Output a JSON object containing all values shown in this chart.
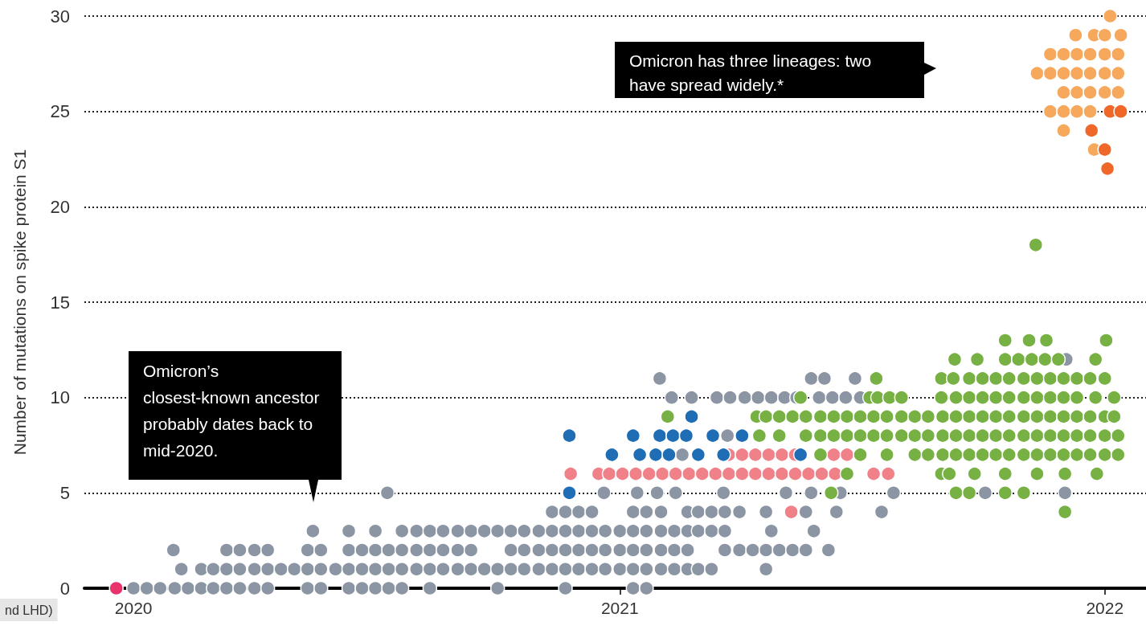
{
  "chart_data": {
    "type": "scatter",
    "ylabel": "Number of mutations on spike protein S1",
    "xlim": [
      "2019-11-25",
      "2022-02-01"
    ],
    "xticks": [
      {
        "value": "2020-01-01",
        "label": "2020"
      },
      {
        "value": "2021-01-01",
        "label": "2021"
      },
      {
        "value": "2022-01-01",
        "label": "2022"
      }
    ],
    "ylim": [
      0,
      30
    ],
    "yticks": [
      0,
      5,
      10,
      15,
      20,
      25,
      30
    ],
    "grid": "y",
    "marker": "circle",
    "annotations": [
      "Omicron has three lineages: two have spread widely.*",
      "Omicron’s closest-known ancestor probably dates back to mid-2020.",
      "nd LHD)"
    ],
    "series": [
      {
        "color": "#8c95a3",
        "x": [
          "2020-01-01",
          "2020-01-11",
          "2020-01-21",
          "2020-02-01",
          "2020-02-11",
          "2020-02-21",
          "2020-03-01",
          "2020-03-11",
          "2020-03-21",
          "2020-04-01",
          "2020-04-11",
          "2020-05-11",
          "2020-05-21",
          "2020-06-11",
          "2020-06-21",
          "2020-07-01",
          "2020-07-11",
          "2020-07-21",
          "2020-08-11",
          "2020-10-01",
          "2020-11-21",
          "2021-01-11",
          "2021-01-21",
          "2020-02-06",
          "2020-02-21",
          "2020-03-01",
          "2020-03-11",
          "2020-03-21",
          "2020-04-01",
          "2020-04-11",
          "2020-04-21",
          "2020-05-01",
          "2020-05-11",
          "2020-05-21",
          "2020-06-01",
          "2020-06-11",
          "2020-06-21",
          "2020-07-01",
          "2020-07-11",
          "2020-07-21",
          "2020-08-01",
          "2020-08-11",
          "2020-08-21",
          "2020-09-01",
          "2020-09-11",
          "2020-09-21",
          "2020-10-01",
          "2020-10-11",
          "2020-10-21",
          "2020-11-01",
          "2020-11-11",
          "2020-11-21",
          "2020-12-01",
          "2020-12-11",
          "2020-12-21",
          "2021-01-01",
          "2021-01-11",
          "2021-01-21",
          "2021-02-01",
          "2021-02-11",
          "2021-02-21",
          "2021-03-01",
          "2021-03-11",
          "2021-04-21",
          "2020-01-31",
          "2020-03-11",
          "2020-03-21",
          "2020-04-01",
          "2020-04-11",
          "2020-05-11",
          "2020-05-21",
          "2020-06-11",
          "2020-06-21",
          "2020-07-01",
          "2020-07-11",
          "2020-07-21",
          "2020-08-01",
          "2020-08-11",
          "2020-08-21",
          "2020-09-01",
          "2020-09-11",
          "2020-10-11",
          "2020-10-21",
          "2020-11-01",
          "2020-11-11",
          "2020-11-21",
          "2020-12-01",
          "2020-12-11",
          "2020-12-21",
          "2021-01-01",
          "2021-01-11",
          "2021-01-21",
          "2021-02-01",
          "2021-02-11",
          "2021-02-21",
          "2021-03-21",
          "2021-04-01",
          "2021-04-11",
          "2021-04-21",
          "2021-05-01",
          "2021-05-11",
          "2021-05-21",
          "2021-06-07",
          "2020-05-15",
          "2020-06-11",
          "2020-07-01",
          "2020-07-21",
          "2020-08-01",
          "2020-08-11",
          "2020-08-21",
          "2020-09-01",
          "2020-09-11",
          "2020-09-21",
          "2020-10-01",
          "2020-10-11",
          "2020-10-21",
          "2020-11-01",
          "2020-11-11",
          "2020-11-21",
          "2020-12-01",
          "2020-12-11",
          "2020-12-21",
          "2021-01-01",
          "2021-01-11",
          "2021-01-21",
          "2021-02-01",
          "2021-02-11",
          "2021-02-21",
          "2021-03-01",
          "2021-03-11",
          "2021-03-21",
          "2021-04-25",
          "2021-05-27",
          "2020-11-11",
          "2020-11-21",
          "2020-12-01",
          "2020-12-11",
          "2021-01-11",
          "2021-01-21",
          "2021-02-01",
          "2021-02-21",
          "2021-03-01",
          "2021-03-11",
          "2021-03-21",
          "2021-04-01",
          "2021-04-21",
          "2021-05-21",
          "2021-06-13",
          "2021-07-17",
          "2020-07-10",
          "2020-12-20",
          "2021-01-14",
          "2021-01-29",
          "2021-02-12",
          "2021-03-20",
          "2021-05-06",
          "2021-05-25",
          "2021-06-16",
          "2021-07-26",
          "2021-10-03",
          "2021-12-02",
          "2021-02-17",
          "2021-03-23",
          "2021-02-09",
          "2021-02-24",
          "2021-03-15",
          "2021-03-25",
          "2021-04-05",
          "2021-04-15",
          "2021-04-25",
          "2021-05-05",
          "2021-05-14",
          "2021-05-31",
          "2021-06-10",
          "2021-06-20",
          "2021-07-01",
          "2021-01-31",
          "2021-05-25",
          "2021-06-04",
          "2021-06-27",
          "2021-12-03"
        ],
        "values": [
          0,
          0,
          0,
          0,
          0,
          0,
          0,
          0,
          0,
          0,
          0,
          0,
          0,
          0,
          0,
          0,
          0,
          0,
          0,
          0,
          0,
          0,
          0,
          1,
          1,
          1,
          1,
          1,
          1,
          1,
          1,
          1,
          1,
          1,
          1,
          1,
          1,
          1,
          1,
          1,
          1,
          1,
          1,
          1,
          1,
          1,
          1,
          1,
          1,
          1,
          1,
          1,
          1,
          1,
          1,
          1,
          1,
          1,
          1,
          1,
          1,
          1,
          1,
          1,
          2,
          2,
          2,
          2,
          2,
          2,
          2,
          2,
          2,
          2,
          2,
          2,
          2,
          2,
          2,
          2,
          2,
          2,
          2,
          2,
          2,
          2,
          2,
          2,
          2,
          2,
          2,
          2,
          2,
          2,
          2,
          2,
          2,
          2,
          2,
          2,
          2,
          2,
          2,
          3,
          3,
          3,
          3,
          3,
          3,
          3,
          3,
          3,
          3,
          3,
          3,
          3,
          3,
          3,
          3,
          3,
          3,
          3,
          3,
          3,
          3,
          3,
          3,
          3,
          3,
          3,
          3,
          3,
          3,
          4,
          4,
          4,
          4,
          4,
          4,
          4,
          4,
          4,
          4,
          4,
          4,
          4,
          4,
          4,
          4,
          5,
          5,
          5,
          5,
          5,
          5,
          5,
          5,
          5,
          5,
          5,
          5,
          7,
          8,
          10,
          10,
          10,
          10,
          10,
          10,
          10,
          10,
          10,
          10,
          10,
          10,
          10,
          11,
          11,
          11,
          11,
          12
        ]
      },
      {
        "color": "#e8336b",
        "x": [
          "2019-12-19"
        ],
        "values": [
          0
        ]
      },
      {
        "color": "#f08189",
        "x": [
          "2020-11-25",
          "2020-12-16",
          "2020-12-24",
          "2021-01-03",
          "2021-01-13",
          "2021-01-23",
          "2021-02-02",
          "2021-02-12",
          "2021-02-22",
          "2021-03-04",
          "2021-03-14",
          "2021-03-24",
          "2021-04-03",
          "2021-04-13",
          "2021-04-23",
          "2021-05-03",
          "2021-05-13",
          "2021-05-23",
          "2021-06-02",
          "2021-06-12",
          "2021-07-11",
          "2021-07-22",
          "2021-03-24",
          "2021-04-03",
          "2021-04-13",
          "2021-04-23",
          "2021-05-03",
          "2021-05-13",
          "2021-06-11",
          "2021-06-21",
          "2021-05-10"
        ],
        "values": [
          6,
          6,
          6,
          6,
          6,
          6,
          6,
          6,
          6,
          6,
          6,
          6,
          6,
          6,
          6,
          6,
          6,
          6,
          6,
          6,
          6,
          6,
          7,
          7,
          7,
          7,
          7,
          7,
          7,
          7,
          4
        ]
      },
      {
        "color": "#1f6db5",
        "x": [
          "2020-11-24",
          "2020-11-24",
          "2021-01-11",
          "2021-01-31",
          "2021-02-10",
          "2021-02-20",
          "2021-03-12",
          "2021-04-03",
          "2020-12-26",
          "2021-01-16",
          "2021-01-28",
          "2021-02-07",
          "2021-03-01",
          "2021-03-20",
          "2021-05-17",
          "2021-02-24"
        ],
        "values": [
          5,
          8,
          8,
          8,
          8,
          8,
          8,
          8,
          7,
          7,
          7,
          7,
          7,
          7,
          7,
          9
        ]
      },
      {
        "color": "#77b043",
        "x": [
          "2021-12-02",
          "2021-06-09",
          "2021-09-11",
          "2021-09-21",
          "2021-10-18",
          "2021-11-01",
          "2021-06-21",
          "2021-08-31",
          "2021-09-06",
          "2021-09-25",
          "2021-10-18",
          "2021-11-11",
          "2021-12-02",
          "2021-12-26",
          "2021-06-01",
          "2021-07-01",
          "2021-07-21",
          "2021-08-11",
          "2021-08-21",
          "2021-09-01",
          "2021-09-11",
          "2021-09-21",
          "2021-10-01",
          "2021-10-11",
          "2021-10-21",
          "2021-11-01",
          "2021-11-11",
          "2021-11-21",
          "2021-12-01",
          "2021-12-11",
          "2021-12-21",
          "2022-01-01",
          "2022-01-11",
          "2021-04-16",
          "2021-05-01",
          "2021-05-21",
          "2021-06-01",
          "2021-06-11",
          "2021-06-21",
          "2021-07-01",
          "2021-07-11",
          "2021-07-21",
          "2021-08-01",
          "2021-08-11",
          "2021-08-21",
          "2021-09-01",
          "2021-09-11",
          "2021-09-21",
          "2021-10-01",
          "2021-10-11",
          "2021-10-21",
          "2021-11-01",
          "2021-11-11",
          "2021-11-21",
          "2021-12-01",
          "2021-12-11",
          "2021-12-21",
          "2022-01-01",
          "2022-01-11",
          "2021-02-06",
          "2021-04-14",
          "2021-04-21",
          "2021-05-01",
          "2021-05-11",
          "2021-05-21",
          "2021-06-01",
          "2021-06-11",
          "2021-06-21",
          "2021-07-01",
          "2021-07-11",
          "2021-07-21",
          "2021-08-01",
          "2021-08-11",
          "2021-08-21",
          "2021-09-01",
          "2021-09-11",
          "2021-09-21",
          "2021-10-01",
          "2021-10-11",
          "2021-10-21",
          "2021-11-01",
          "2021-11-11",
          "2021-11-21",
          "2021-12-01",
          "2021-12-11",
          "2021-12-21",
          "2022-01-01",
          "2022-01-08",
          "2021-05-17",
          "2021-07-08",
          "2021-07-14",
          "2021-07-23",
          "2021-08-01",
          "2021-08-31",
          "2021-09-11",
          "2021-09-21",
          "2021-10-01",
          "2021-10-11",
          "2021-10-21",
          "2021-11-01",
          "2021-11-11",
          "2021-11-21",
          "2021-12-01",
          "2021-12-11",
          "2021-12-25",
          "2022-01-08",
          "2021-07-13",
          "2021-08-31",
          "2021-09-09",
          "2021-09-21",
          "2021-10-01",
          "2021-10-11",
          "2021-10-21",
          "2021-11-01",
          "2021-11-11",
          "2021-11-21",
          "2021-12-01",
          "2021-12-11",
          "2021-12-21",
          "2022-01-01",
          "2021-09-10",
          "2021-09-27",
          "2021-10-18",
          "2021-10-28",
          "2021-11-07",
          "2021-11-17",
          "2021-11-27",
          "2021-12-25",
          "2021-10-18",
          "2021-11-05",
          "2021-11-18",
          "2022-01-02",
          "2021-11-10"
        ],
        "values": [
          4,
          5,
          5,
          5,
          5,
          5,
          6,
          6,
          6,
          6,
          6,
          6,
          6,
          6,
          7,
          7,
          7,
          7,
          7,
          7,
          7,
          7,
          7,
          7,
          7,
          7,
          7,
          7,
          7,
          7,
          7,
          7,
          7,
          8,
          8,
          8,
          8,
          8,
          8,
          8,
          8,
          8,
          8,
          8,
          8,
          8,
          8,
          8,
          8,
          8,
          8,
          8,
          8,
          8,
          8,
          8,
          8,
          8,
          8,
          9,
          9,
          9,
          9,
          9,
          9,
          9,
          9,
          9,
          9,
          9,
          9,
          9,
          9,
          9,
          9,
          9,
          9,
          9,
          9,
          9,
          9,
          9,
          9,
          9,
          9,
          9,
          9,
          9,
          10,
          10,
          10,
          10,
          10,
          10,
          10,
          10,
          10,
          10,
          10,
          10,
          10,
          10,
          10,
          10,
          10,
          10,
          11,
          11,
          11,
          11,
          11,
          11,
          11,
          11,
          11,
          11,
          11,
          11,
          11,
          11,
          12,
          12,
          12,
          12,
          12,
          12,
          12,
          12,
          13,
          13,
          13,
          13,
          18
        ]
      },
      {
        "color": "#f6a85c",
        "x": [
          "2022-01-05",
          "2021-12-10",
          "2021-12-24",
          "2022-01-01",
          "2022-01-13",
          "2021-11-21",
          "2021-12-01",
          "2021-12-11",
          "2021-12-21",
          "2022-01-01",
          "2022-01-11",
          "2021-11-11",
          "2021-11-21",
          "2021-12-01",
          "2021-12-11",
          "2021-12-21",
          "2022-01-01",
          "2022-01-11",
          "2021-12-01",
          "2021-12-11",
          "2021-12-21",
          "2022-01-01",
          "2022-01-11",
          "2021-11-21",
          "2021-12-01",
          "2021-12-11",
          "2021-12-21",
          "2021-12-01",
          "2021-12-24"
        ],
        "values": [
          30,
          29,
          29,
          29,
          29,
          28,
          28,
          28,
          28,
          28,
          28,
          27,
          27,
          27,
          27,
          27,
          27,
          27,
          26,
          26,
          26,
          26,
          26,
          25,
          25,
          25,
          25,
          24,
          23
        ]
      },
      {
        "color": "#ef682a",
        "x": [
          "2022-01-05",
          "2022-01-13",
          "2021-12-22",
          "2022-01-01",
          "2022-01-03"
        ],
        "values": [
          25,
          25,
          24,
          23,
          22
        ]
      }
    ]
  }
}
